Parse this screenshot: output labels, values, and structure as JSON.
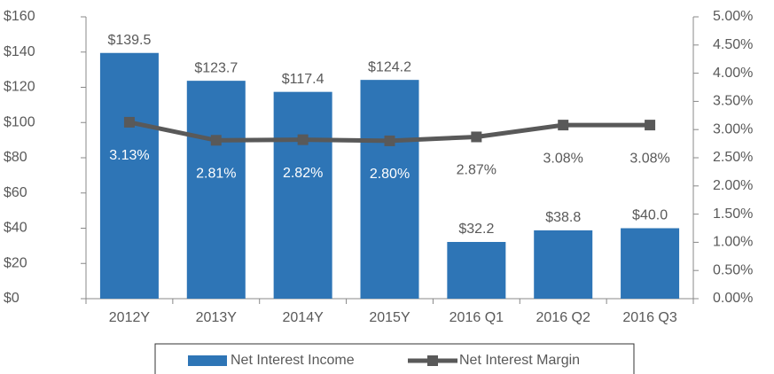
{
  "chart_data": {
    "type": "bar_line",
    "categories": [
      "2012Y",
      "2013Y",
      "2014Y",
      "2015Y",
      "2016 Q1",
      "2016 Q2",
      "2016 Q3"
    ],
    "series": [
      {
        "name": "Net Interest Income",
        "color": "#2e75b6",
        "type": "bar",
        "values": [
          139.5,
          123.7,
          117.4,
          124.2,
          32.2,
          38.8,
          40.0
        ],
        "value_labels": [
          "$139.5",
          "$123.7",
          "$117.4",
          "$124.2",
          "$32.2",
          "$38.8",
          "$40.0"
        ]
      },
      {
        "name": "Net Interest Margin",
        "color": "#595959",
        "type": "line",
        "axis": "y2",
        "values": [
          3.13,
          2.81,
          2.82,
          2.8,
          2.87,
          3.08,
          3.08
        ],
        "value_labels": [
          "3.13%",
          "2.81%",
          "2.82%",
          "2.80%",
          "2.87%",
          "3.08%",
          "3.08%"
        ]
      }
    ],
    "ylim": [
      0,
      160
    ],
    "yticks": [
      {
        "value": 0,
        "label": "$0"
      },
      {
        "value": 20,
        "label": "$20"
      },
      {
        "value": 40,
        "label": "$40"
      },
      {
        "value": 60,
        "label": "$60"
      },
      {
        "value": 80,
        "label": "$80"
      },
      {
        "value": 100,
        "label": "$100"
      },
      {
        "value": 120,
        "label": "$120"
      },
      {
        "value": 140,
        "label": "$140"
      },
      {
        "value": 160,
        "label": "$160"
      }
    ],
    "y2lim": [
      0,
      5
    ],
    "y2ticks": [
      {
        "value": 0,
        "label": "0.00%"
      },
      {
        "value": 0.5,
        "label": "0.50%"
      },
      {
        "value": 1,
        "label": "1.00%"
      },
      {
        "value": 1.5,
        "label": "1.50%"
      },
      {
        "value": 2,
        "label": "2.00%"
      },
      {
        "value": 2.5,
        "label": "2.50%"
      },
      {
        "value": 3,
        "label": "3.00%"
      },
      {
        "value": 3.5,
        "label": "3.50%"
      },
      {
        "value": 4,
        "label": "4.00%"
      },
      {
        "value": 4.5,
        "label": "4.50%"
      },
      {
        "value": 5,
        "label": "5.00%"
      }
    ],
    "legend": "bottom"
  }
}
